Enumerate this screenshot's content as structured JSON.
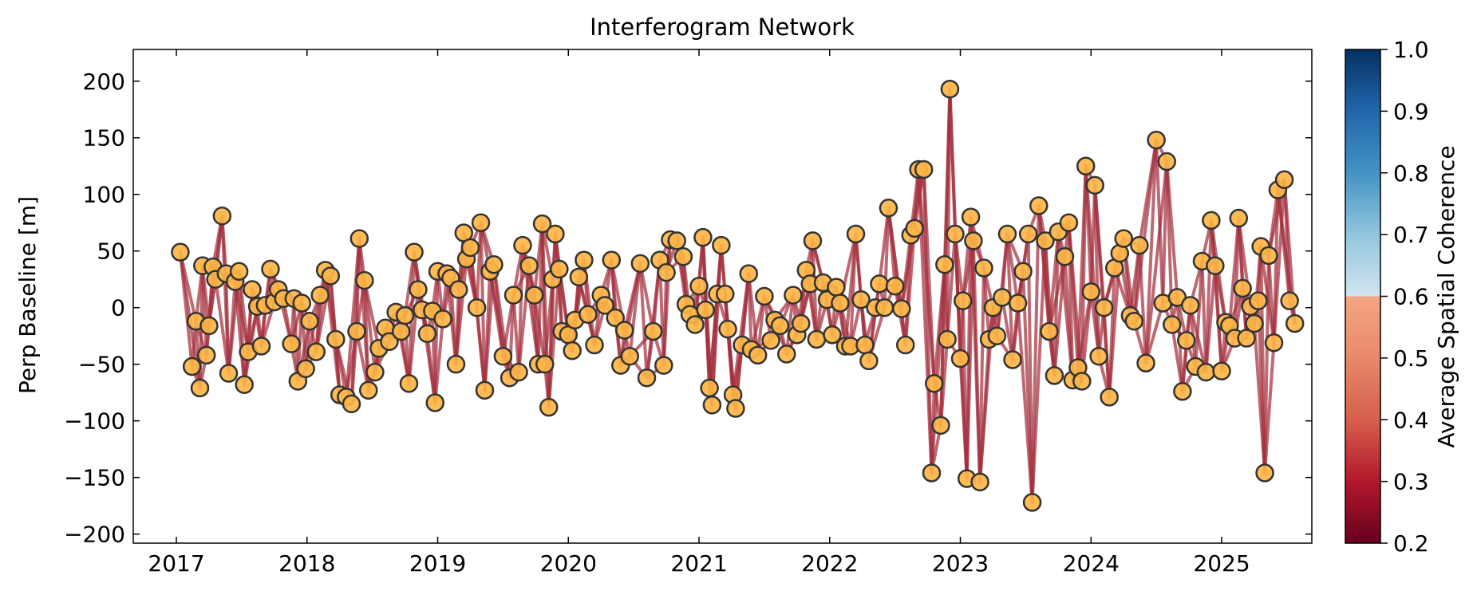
{
  "chart_data": {
    "type": "scatter",
    "title": "Interferogram Network",
    "xlabel": "",
    "ylabel": "Perp Baseline [m]",
    "x_ticks": [
      "2017",
      "2018",
      "2019",
      "2020",
      "2021",
      "2022",
      "2023",
      "2024",
      "2025"
    ],
    "y_ticks": [
      200,
      150,
      100,
      50,
      0,
      -50,
      -100,
      -150,
      -200
    ],
    "xlim": [
      2016.67,
      2025.69
    ],
    "ylim": [
      -208,
      228
    ],
    "grid": false,
    "colorbar": {
      "label": "Average Spatial Coherence",
      "ticks": [
        "1.0",
        "0.9",
        "0.8",
        "0.7",
        "0.6",
        "0.5",
        "0.4",
        "0.3",
        "0.2"
      ],
      "range": [
        0.2,
        1.0
      ],
      "colormap": "RdBu"
    },
    "marker_color": "#fdb547",
    "marker_edge": "#333333",
    "edge_color": "#a4303e",
    "points": [
      [
        2017.03,
        49
      ],
      [
        2017.12,
        -52
      ],
      [
        2017.15,
        -12
      ],
      [
        2017.18,
        -71
      ],
      [
        2017.2,
        37
      ],
      [
        2017.23,
        -42
      ],
      [
        2017.25,
        -16
      ],
      [
        2017.28,
        36
      ],
      [
        2017.3,
        25
      ],
      [
        2017.35,
        81
      ],
      [
        2017.38,
        30
      ],
      [
        2017.4,
        -58
      ],
      [
        2017.45,
        23
      ],
      [
        2017.48,
        32
      ],
      [
        2017.52,
        -68
      ],
      [
        2017.55,
        -39
      ],
      [
        2017.58,
        16
      ],
      [
        2017.62,
        1
      ],
      [
        2017.65,
        -34
      ],
      [
        2017.68,
        2
      ],
      [
        2017.72,
        34
      ],
      [
        2017.75,
        5
      ],
      [
        2017.78,
        16
      ],
      [
        2017.82,
        8
      ],
      [
        2017.88,
        -32
      ],
      [
        2017.9,
        8
      ],
      [
        2017.93,
        -65
      ],
      [
        2017.96,
        4
      ],
      [
        2017.99,
        -54
      ],
      [
        2018.02,
        -12
      ],
      [
        2018.07,
        -39
      ],
      [
        2018.1,
        11
      ],
      [
        2018.14,
        33
      ],
      [
        2018.18,
        28
      ],
      [
        2018.22,
        -28
      ],
      [
        2018.25,
        -77
      ],
      [
        2018.3,
        -79
      ],
      [
        2018.34,
        -85
      ],
      [
        2018.38,
        -21
      ],
      [
        2018.4,
        61
      ],
      [
        2018.44,
        24
      ],
      [
        2018.47,
        -73
      ],
      [
        2018.52,
        -57
      ],
      [
        2018.55,
        -36
      ],
      [
        2018.6,
        -18
      ],
      [
        2018.63,
        -30
      ],
      [
        2018.68,
        -4
      ],
      [
        2018.72,
        -21
      ],
      [
        2018.75,
        -7
      ],
      [
        2018.78,
        -67
      ],
      [
        2018.82,
        49
      ],
      [
        2018.85,
        16
      ],
      [
        2018.88,
        -2
      ],
      [
        2018.92,
        -23
      ],
      [
        2018.96,
        -3
      ],
      [
        2018.98,
        -84
      ],
      [
        2019.0,
        32
      ],
      [
        2019.04,
        -10
      ],
      [
        2019.07,
        30
      ],
      [
        2019.1,
        26
      ],
      [
        2019.14,
        -50
      ],
      [
        2019.16,
        16
      ],
      [
        2019.2,
        66
      ],
      [
        2019.22,
        43
      ],
      [
        2019.25,
        53
      ],
      [
        2019.3,
        0
      ],
      [
        2019.33,
        75
      ],
      [
        2019.36,
        -73
      ],
      [
        2019.4,
        32
      ],
      [
        2019.43,
        38
      ],
      [
        2019.5,
        -43
      ],
      [
        2019.55,
        -62
      ],
      [
        2019.58,
        11
      ],
      [
        2019.62,
        -57
      ],
      [
        2019.65,
        55
      ],
      [
        2019.7,
        37
      ],
      [
        2019.74,
        11
      ],
      [
        2019.77,
        -50
      ],
      [
        2019.82,
        -50
      ],
      [
        2019.85,
        -88
      ],
      [
        2019.8,
        74
      ],
      [
        2019.88,
        25
      ],
      [
        2019.9,
        65
      ],
      [
        2019.93,
        34
      ],
      [
        2019.95,
        -21
      ],
      [
        2020.0,
        -24
      ],
      [
        2020.03,
        -38
      ],
      [
        2020.05,
        -11
      ],
      [
        2020.08,
        27
      ],
      [
        2020.12,
        42
      ],
      [
        2020.15,
        -6
      ],
      [
        2020.2,
        -33
      ],
      [
        2020.25,
        11
      ],
      [
        2020.28,
        2
      ],
      [
        2020.33,
        42
      ],
      [
        2020.36,
        -9
      ],
      [
        2020.4,
        -51
      ],
      [
        2020.43,
        -20
      ],
      [
        2020.47,
        -43
      ],
      [
        2020.55,
        39
      ],
      [
        2020.6,
        -62
      ],
      [
        2020.65,
        -21
      ],
      [
        2020.7,
        42
      ],
      [
        2020.73,
        -51
      ],
      [
        2020.75,
        31
      ],
      [
        2020.78,
        60
      ],
      [
        2020.83,
        59
      ],
      [
        2020.88,
        45
      ],
      [
        2020.9,
        3
      ],
      [
        2020.93,
        -6
      ],
      [
        2020.97,
        -15
      ],
      [
        2021.0,
        19
      ],
      [
        2021.03,
        62
      ],
      [
        2021.05,
        -2
      ],
      [
        2021.08,
        -71
      ],
      [
        2021.1,
        -86
      ],
      [
        2021.14,
        12
      ],
      [
        2021.17,
        55
      ],
      [
        2021.2,
        12
      ],
      [
        2021.22,
        -19
      ],
      [
        2021.26,
        -77
      ],
      [
        2021.28,
        -89
      ],
      [
        2021.33,
        -33
      ],
      [
        2021.38,
        30
      ],
      [
        2021.4,
        -37
      ],
      [
        2021.45,
        -42
      ],
      [
        2021.5,
        10
      ],
      [
        2021.55,
        -29
      ],
      [
        2021.58,
        -11
      ],
      [
        2021.62,
        -16
      ],
      [
        2021.67,
        -41
      ],
      [
        2021.72,
        11
      ],
      [
        2021.75,
        -24
      ],
      [
        2021.78,
        -14
      ],
      [
        2021.82,
        33
      ],
      [
        2021.85,
        21
      ],
      [
        2021.87,
        59
      ],
      [
        2021.9,
        -28
      ],
      [
        2021.95,
        22
      ],
      [
        2021.98,
        7
      ],
      [
        2022.02,
        -24
      ],
      [
        2022.05,
        18
      ],
      [
        2022.08,
        4
      ],
      [
        2022.12,
        -34
      ],
      [
        2022.16,
        -34
      ],
      [
        2022.2,
        65
      ],
      [
        2022.24,
        7
      ],
      [
        2022.27,
        -33
      ],
      [
        2022.3,
        -47
      ],
      [
        2022.35,
        0
      ],
      [
        2022.38,
        21
      ],
      [
        2022.42,
        0
      ],
      [
        2022.45,
        88
      ],
      [
        2022.5,
        19
      ],
      [
        2022.55,
        -1
      ],
      [
        2022.58,
        -33
      ],
      [
        2022.62,
        64
      ],
      [
        2022.65,
        70
      ],
      [
        2022.68,
        122
      ],
      [
        2022.72,
        122
      ],
      [
        2022.78,
        -146
      ],
      [
        2022.8,
        -67
      ],
      [
        2022.85,
        -104
      ],
      [
        2022.88,
        38
      ],
      [
        2022.9,
        -28
      ],
      [
        2022.92,
        193
      ],
      [
        2022.96,
        65
      ],
      [
        2023.0,
        -45
      ],
      [
        2023.02,
        6
      ],
      [
        2023.05,
        -151
      ],
      [
        2023.08,
        80
      ],
      [
        2023.1,
        59
      ],
      [
        2023.15,
        -154
      ],
      [
        2023.18,
        35
      ],
      [
        2023.22,
        -28
      ],
      [
        2023.25,
        0
      ],
      [
        2023.28,
        -25
      ],
      [
        2023.32,
        9
      ],
      [
        2023.36,
        65
      ],
      [
        2023.4,
        -46
      ],
      [
        2023.44,
        4
      ],
      [
        2023.48,
        32
      ],
      [
        2023.52,
        65
      ],
      [
        2023.55,
        -172
      ],
      [
        2023.6,
        90
      ],
      [
        2023.65,
        59
      ],
      [
        2023.68,
        -21
      ],
      [
        2023.72,
        -60
      ],
      [
        2023.75,
        67
      ],
      [
        2023.8,
        45
      ],
      [
        2023.83,
        75
      ],
      [
        2023.86,
        -64
      ],
      [
        2023.9,
        -53
      ],
      [
        2023.93,
        -65
      ],
      [
        2023.96,
        125
      ],
      [
        2024.0,
        14
      ],
      [
        2024.03,
        108
      ],
      [
        2024.06,
        -43
      ],
      [
        2024.1,
        0
      ],
      [
        2024.14,
        -79
      ],
      [
        2024.18,
        35
      ],
      [
        2024.22,
        48
      ],
      [
        2024.25,
        61
      ],
      [
        2024.3,
        -7
      ],
      [
        2024.33,
        -12
      ],
      [
        2024.37,
        55
      ],
      [
        2024.42,
        -49
      ],
      [
        2024.5,
        148
      ],
      [
        2024.55,
        4
      ],
      [
        2024.58,
        129
      ],
      [
        2024.62,
        -15
      ],
      [
        2024.66,
        9
      ],
      [
        2024.7,
        -74
      ],
      [
        2024.73,
        -29
      ],
      [
        2024.76,
        2
      ],
      [
        2024.8,
        -52
      ],
      [
        2024.85,
        41
      ],
      [
        2024.88,
        -57
      ],
      [
        2024.92,
        77
      ],
      [
        2024.95,
        37
      ],
      [
        2025.0,
        -56
      ],
      [
        2025.03,
        -13
      ],
      [
        2025.06,
        -16
      ],
      [
        2025.1,
        -27
      ],
      [
        2025.13,
        79
      ],
      [
        2025.16,
        17
      ],
      [
        2025.19,
        -27
      ],
      [
        2025.22,
        1
      ],
      [
        2025.25,
        -14
      ],
      [
        2025.28,
        6
      ],
      [
        2025.3,
        54
      ],
      [
        2025.33,
        -146
      ],
      [
        2025.36,
        46
      ],
      [
        2025.4,
        -31
      ],
      [
        2025.43,
        104
      ],
      [
        2025.48,
        113
      ],
      [
        2025.52,
        6
      ],
      [
        2025.56,
        -14
      ]
    ]
  }
}
